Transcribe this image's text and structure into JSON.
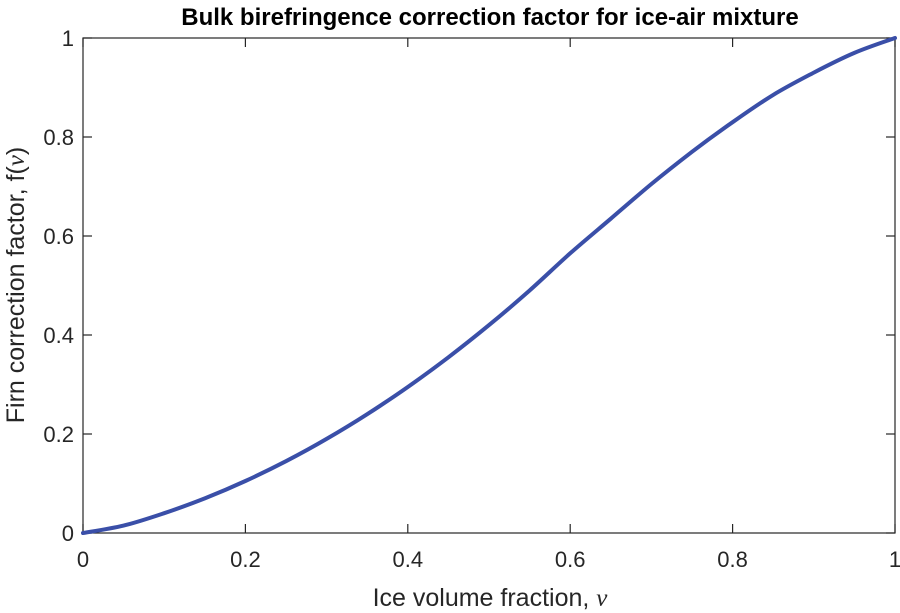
{
  "chart_data": {
    "type": "line",
    "title": "Bulk birefringence correction factor for ice-air mixture",
    "xlabel": "Ice volume fraction, ",
    "xlabel_symbol": "ν",
    "ylabel": "Firn correction factor, f(",
    "ylabel_symbol": "ν",
    "ylabel_close": ")",
    "xlim": [
      0,
      1
    ],
    "ylim": [
      0,
      1
    ],
    "xticks": [
      0,
      0.2,
      0.4,
      0.6,
      0.8,
      1
    ],
    "xtick_labels": [
      "0",
      "0.2",
      "0.4",
      "0.6",
      "0.8",
      "1"
    ],
    "yticks": [
      0,
      0.2,
      0.4,
      0.6,
      0.8,
      1
    ],
    "ytick_labels": [
      "0",
      "0.2",
      "0.4",
      "0.6",
      "0.8",
      "1"
    ],
    "grid": false,
    "box": true,
    "series": [
      {
        "color": "#3a4fa8",
        "x": [
          0,
          0.05,
          0.1,
          0.15,
          0.2,
          0.25,
          0.3,
          0.35,
          0.4,
          0.45,
          0.5,
          0.55,
          0.6,
          0.65,
          0.7,
          0.75,
          0.8,
          0.85,
          0.9,
          0.95,
          1
        ],
        "y": [
          0,
          0.015,
          0.04,
          0.07,
          0.105,
          0.145,
          0.19,
          0.24,
          0.295,
          0.355,
          0.42,
          0.49,
          0.565,
          0.635,
          0.705,
          0.77,
          0.83,
          0.885,
          0.93,
          0.97,
          1
        ]
      }
    ]
  }
}
